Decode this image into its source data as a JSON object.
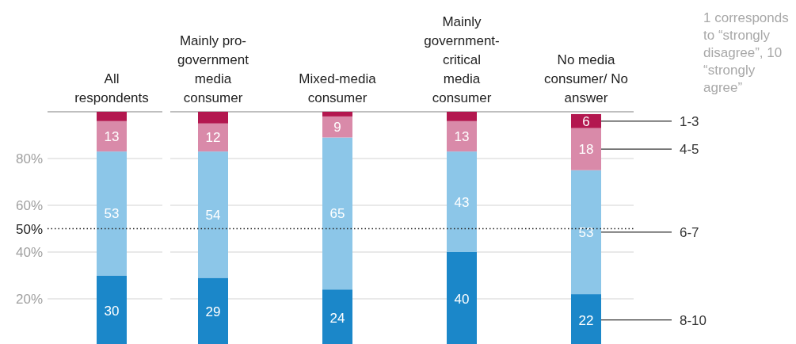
{
  "chart_data": {
    "type": "bar",
    "stacked": true,
    "categories": [
      "All respondents",
      "Mainly pro-government media consumer",
      "Mixed-media consumer",
      "Mainly government-critical media consumer",
      "No media consumer/ No answer"
    ],
    "series": [
      {
        "name": "8-10",
        "color": "#1b87c9",
        "values": [
          30,
          29,
          24,
          40,
          22
        ],
        "value_labels": [
          "30",
          "29",
          "24",
          "40",
          "22"
        ]
      },
      {
        "name": "6-7",
        "color": "#8cc6e8",
        "values": [
          53,
          54,
          65,
          43,
          53
        ],
        "value_labels": [
          "53",
          "54",
          "65",
          "43",
          "53"
        ]
      },
      {
        "name": "4-5",
        "color": "#d98aa9",
        "values": [
          13,
          12,
          9,
          13,
          18
        ],
        "value_labels": [
          "13",
          "12",
          "9",
          "13",
          "18"
        ]
      },
      {
        "name": "1-3",
        "color": "#b3174f",
        "values": [
          4,
          5,
          2,
          4,
          6
        ],
        "value_labels": [
          null,
          null,
          null,
          null,
          "6"
        ]
      }
    ],
    "ylim": [
      0,
      100
    ],
    "yticks": [
      {
        "value": 20,
        "label": "20%"
      },
      {
        "value": 40,
        "label": "40%"
      },
      {
        "value": 60,
        "label": "60%"
      },
      {
        "value": 80,
        "label": "80%"
      }
    ],
    "grid": "y",
    "legend": "right",
    "legend_title": "1 corresponds to “strongly disagree”, 10 “strongly agree”",
    "ref_lines": [
      {
        "axis": "y",
        "value": 50,
        "label": "50%",
        "line_style": "dotted",
        "color": "#222222"
      }
    ]
  }
}
